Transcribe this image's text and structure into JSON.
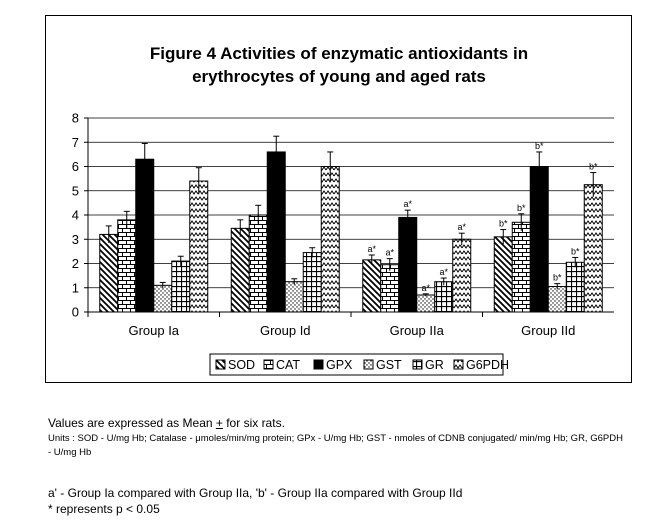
{
  "chart_data": {
    "type": "bar",
    "title_lines": [
      "Figure 4  Activities of enzymatic antioxidants in",
      "erythrocytes of young and aged rats"
    ],
    "categories": [
      "Group Ia",
      "Group Id",
      "Group IIa",
      "Group IId"
    ],
    "ylim": [
      0,
      8
    ],
    "yticks": [
      "0",
      "1",
      "2",
      "3",
      "4",
      "5",
      "6",
      "7",
      "8"
    ],
    "grid": true,
    "legend_position": "bottom",
    "series": [
      {
        "name": "SOD",
        "pattern": "diag",
        "values": [
          3.2,
          3.45,
          2.15,
          3.1
        ],
        "errors": [
          0.35,
          0.35,
          0.2,
          0.3
        ],
        "labels": [
          "",
          "",
          "a*",
          "b*"
        ]
      },
      {
        "name": "CAT",
        "pattern": "brick",
        "values": [
          3.8,
          4.0,
          1.95,
          3.7
        ],
        "errors": [
          0.35,
          0.4,
          0.25,
          0.35
        ],
        "labels": [
          "",
          "",
          "a*",
          "b*"
        ]
      },
      {
        "name": "GPX",
        "pattern": "solid",
        "values": [
          6.3,
          6.6,
          3.9,
          6.0
        ],
        "errors": [
          0.65,
          0.65,
          0.3,
          0.6
        ],
        "labels": [
          "",
          "",
          "a*",
          "b*"
        ]
      },
      {
        "name": "GST",
        "pattern": "dots",
        "values": [
          1.1,
          1.25,
          0.7,
          1.05
        ],
        "errors": [
          0.12,
          0.12,
          0.05,
          0.12
        ],
        "labels": [
          "",
          "",
          "a*",
          "b*"
        ]
      },
      {
        "name": "GR",
        "pattern": "grid",
        "values": [
          2.1,
          2.45,
          1.25,
          2.05
        ],
        "errors": [
          0.2,
          0.2,
          0.15,
          0.2
        ],
        "labels": [
          "",
          "",
          "a*",
          "b*"
        ]
      },
      {
        "name": "G6PDH",
        "pattern": "zigzag",
        "values": [
          5.4,
          6.0,
          3.0,
          5.25
        ],
        "errors": [
          0.55,
          0.6,
          0.25,
          0.5
        ],
        "labels": [
          "",
          "",
          "a*",
          "b*"
        ]
      }
    ]
  },
  "notes": {
    "values_prefix": "Values are expressed as Mean ",
    "pm": "+",
    "values_suffix": " for six rats.",
    "units": "Units : SOD - U/mg Hb;  Catalase - μmoles/min/mg protein; GPx - U/mg Hb;  GST - nmoles of CDNB conjugated/ min/mg Hb; GR, G6PDH - U/mg Hb",
    "comparison": "a' - Group Ia compared with Group IIa, 'b' - Group IIa compared with Group  IId",
    "significance": "* represents p < 0.05"
  }
}
